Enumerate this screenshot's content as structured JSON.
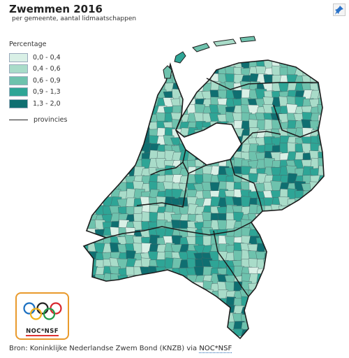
{
  "header": {
    "title": "Zwemmen 2016",
    "subtitle": "per gemeente, aantal lidmaatschappen"
  },
  "legend": {
    "title": "Percentage",
    "classes": [
      {
        "label": "0,0 - 0,4",
        "color": "#d9f0e6"
      },
      {
        "label": "0,4 - 0,6",
        "color": "#a9dcc9"
      },
      {
        "label": "0,6 - 0,9",
        "color": "#6ec2ad"
      },
      {
        "label": "0,9 - 1,3",
        "color": "#2ea596"
      },
      {
        "label": "1,3 - 2,0",
        "color": "#0f6f71"
      }
    ],
    "boundary_label": "provincies"
  },
  "map": {
    "region": "Netherlands",
    "unit": "municipality (gemeente)",
    "boundary_color": "#1c1c1c",
    "municipality_line_color": "#4c6668",
    "export_icon": "pin-icon"
  },
  "logo": {
    "text": "NOC*NSF",
    "icon": "olympic-rings-icon",
    "border_color": "#e99a2c",
    "ring_colors": [
      "#1a6fc1",
      "#222222",
      "#d8282f",
      "#f2b21b",
      "#1f9a48"
    ]
  },
  "footer": {
    "source_prefix": "Bron: Koninklijke Nederlandse Zwem Bond (KNZB) via ",
    "source_link": "NOC*NSF"
  }
}
